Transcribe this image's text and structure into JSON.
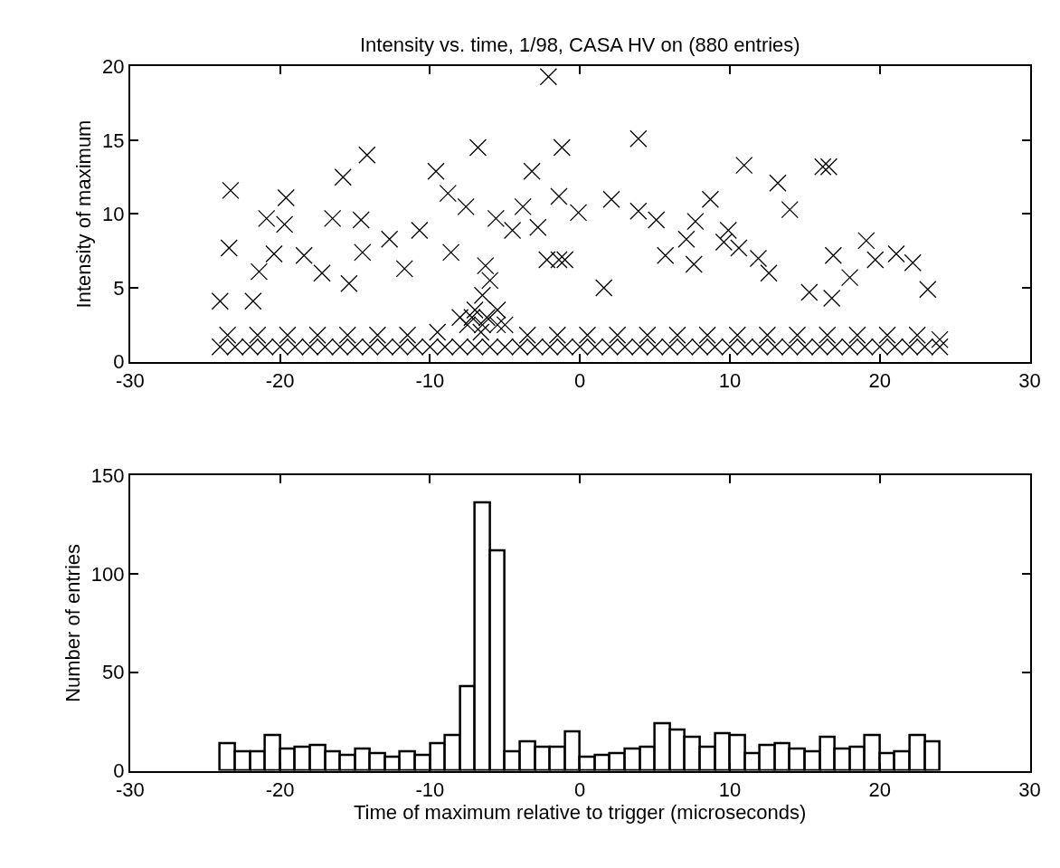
{
  "chart_data": [
    {
      "type": "scatter",
      "title": "Intensity vs. time, 1/98, CASA HV on (880 entries)",
      "ylabel": "Intensity of maximum",
      "xlim": [
        -30,
        30
      ],
      "xticks": [
        -30,
        -20,
        -10,
        0,
        10,
        20,
        30
      ],
      "ylim": [
        0,
        20
      ],
      "yticks": [
        0,
        5,
        10,
        15,
        20
      ],
      "marker": "cross",
      "series": [
        {
          "color": "#000000",
          "x": [
            -23.3,
            -23.4,
            -19.6,
            -20.9,
            -19.7,
            -15.8,
            -14.2,
            -16.5,
            -14.6,
            -12.7,
            -10.7,
            -9.6,
            -8.8,
            -7.6,
            -6.8,
            -2.1,
            -1.2,
            -3.2,
            -3.8,
            -2.8,
            -1.4,
            -0.1,
            -5.6,
            -4.5,
            -14.5,
            -8.6,
            -11.7,
            -18.4,
            -20.4,
            -21.4,
            -17.2,
            -15.4,
            -2.2,
            -1.0,
            -24.0,
            -21.8,
            -6.3,
            3.9,
            2.1,
            3.9,
            5.1,
            10.95,
            13.2,
            14.0,
            16.2,
            16.6,
            8.7,
            7.7,
            9.9,
            9.6,
            7.1,
            5.7,
            7.6,
            10.6,
            11.9,
            12.6,
            16.9,
            19.1,
            19.7,
            21.1,
            22.2,
            23.2,
            -1.4,
            1.6,
            15.3,
            16.8,
            18.0,
            -24,
            -23,
            -22,
            -21,
            -20,
            -19,
            -18,
            -17,
            -16,
            -15,
            -14,
            -13,
            -12,
            -11,
            -10,
            -9,
            -8,
            -7,
            -6,
            -5,
            -4,
            -3,
            -2,
            -1,
            0,
            1,
            2,
            3,
            4,
            5,
            6,
            7,
            8,
            9,
            10,
            11,
            12,
            13,
            14,
            15,
            16,
            17,
            18,
            19,
            20,
            21,
            22,
            23,
            24,
            -23.5,
            -21.5,
            -19.5,
            -17.5,
            -15.5,
            -13.5,
            -11.5,
            -9.5,
            -7.5,
            -6.5,
            -5.5,
            -3.5,
            -1.5,
            0.5,
            2.5,
            4.5,
            6.5,
            8.5,
            10.5,
            12.5,
            14.5,
            16.5,
            18.5,
            20.5,
            22.5,
            24.0,
            -7.0,
            -6.5,
            -6.0,
            -5.5,
            -7.2,
            -6.2,
            -6.6,
            -8.0,
            -5.0
          ],
          "values": [
            11.6,
            7.7,
            11.1,
            9.7,
            9.3,
            12.5,
            14.0,
            9.7,
            9.6,
            8.3,
            8.9,
            12.9,
            11.4,
            10.5,
            14.5,
            19.3,
            14.5,
            12.9,
            10.5,
            9.1,
            11.2,
            10.1,
            9.7,
            8.9,
            7.4,
            7.4,
            6.3,
            7.2,
            7.3,
            6.1,
            6.0,
            5.3,
            6.9,
            6.9,
            4.1,
            4.1,
            6.5,
            15.1,
            11.0,
            10.2,
            9.6,
            13.3,
            12.1,
            10.3,
            13.2,
            13.2,
            11.0,
            9.5,
            8.9,
            8.1,
            8.3,
            7.2,
            6.6,
            7.7,
            7.0,
            6.0,
            7.2,
            8.2,
            6.9,
            7.3,
            6.7,
            4.9,
            6.9,
            5.0,
            4.7,
            4.3,
            5.7,
            1.0,
            1.0,
            1.0,
            1.0,
            1.0,
            1.0,
            1.0,
            1.0,
            1.0,
            1.0,
            1.0,
            1.0,
            1.0,
            1.0,
            1.0,
            1.0,
            1.0,
            1.0,
            1.0,
            1.0,
            1.0,
            1.0,
            1.0,
            1.0,
            1.0,
            1.0,
            1.0,
            1.0,
            1.0,
            1.0,
            1.0,
            1.0,
            1.0,
            1.0,
            1.0,
            1.0,
            1.0,
            1.0,
            1.0,
            1.0,
            1.0,
            1.0,
            1.0,
            1.0,
            1.0,
            1.0,
            1.0,
            1.0,
            1.0,
            1.8,
            1.8,
            1.8,
            1.8,
            1.8,
            1.8,
            1.8,
            2.0,
            2.5,
            2.5,
            2.5,
            1.8,
            1.8,
            1.8,
            1.8,
            1.8,
            1.8,
            1.8,
            1.8,
            1.8,
            1.8,
            1.8,
            1.8,
            1.8,
            1.8,
            1.5,
            3.5,
            4.5,
            5.5,
            3.5,
            3.0,
            3.0,
            2.0,
            3.0,
            2.5
          ]
        }
      ]
    },
    {
      "type": "histogram",
      "xlabel": "Time of maximum relative to trigger (microseconds)",
      "ylabel": "Number of entries",
      "xlim": [
        -30,
        30
      ],
      "xticks": [
        -30,
        -20,
        -10,
        0,
        10,
        20,
        30
      ],
      "ylim": [
        0,
        150
      ],
      "yticks": [
        0,
        50,
        100,
        150
      ],
      "color": "#ffffff",
      "bins": [
        -24,
        -23,
        -22,
        -21,
        -20,
        -19,
        -18,
        -17,
        -16,
        -15,
        -14,
        -13,
        -12,
        -11,
        -10,
        -9,
        -8,
        -7,
        -6,
        -5,
        -4,
        -3,
        -2,
        -1,
        0,
        1,
        2,
        3,
        4,
        5,
        6,
        7,
        8,
        9,
        10,
        11,
        12,
        13,
        14,
        15,
        16,
        17,
        18,
        19,
        20,
        21,
        22,
        23,
        24
      ],
      "values": [
        14,
        10,
        10,
        18,
        11,
        12,
        13,
        10,
        8,
        11,
        9,
        7,
        10,
        8,
        14,
        18,
        43,
        136,
        112,
        10,
        15,
        12,
        12,
        20,
        7,
        8,
        9,
        11,
        12,
        24,
        21,
        17,
        12,
        19,
        18,
        9,
        13,
        14,
        11,
        10,
        17,
        11,
        12,
        18,
        9,
        10,
        18,
        15
      ]
    }
  ]
}
